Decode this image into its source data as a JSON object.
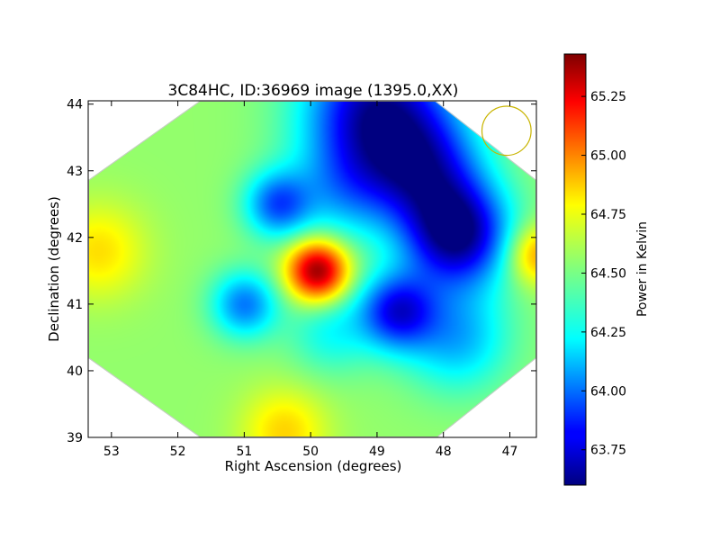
{
  "chart_data": {
    "type": "heatmap",
    "title": "3C84HC, ID:36969 image (1395.0,XX)",
    "xlabel": "Right Ascension (degrees)",
    "ylabel": "Declination (degrees)",
    "xlim": [
      53.35,
      46.6
    ],
    "ylim": [
      39.0,
      44.05
    ],
    "x_ticks": [
      "53",
      "52",
      "51",
      "50",
      "49",
      "48",
      "47"
    ],
    "y_ticks": [
      "39",
      "40",
      "41",
      "42",
      "43",
      "44"
    ],
    "colormap": "jet",
    "background": 64.55,
    "blobs": [
      {
        "ra": 49.9,
        "dec": 41.5,
        "value": 65.42,
        "sigma": 0.32
      },
      {
        "ra": 46.6,
        "dec": 41.75,
        "value": 64.95,
        "sigma": 0.32
      },
      {
        "ra": 53.2,
        "dec": 41.8,
        "value": 64.8,
        "sigma": 0.5
      },
      {
        "ra": 50.4,
        "dec": 39.1,
        "value": 64.82,
        "sigma": 0.45
      },
      {
        "ra": 49.0,
        "dec": 43.9,
        "value": 63.68,
        "sigma": 0.75
      },
      {
        "ra": 47.8,
        "dec": 42.05,
        "value": 63.62,
        "sigma": 0.55
      },
      {
        "ra": 48.7,
        "dec": 40.9,
        "value": 63.85,
        "sigma": 0.4
      },
      {
        "ra": 48.3,
        "dec": 43.0,
        "value": 63.95,
        "sigma": 0.6
      },
      {
        "ra": 50.5,
        "dec": 42.5,
        "value": 64.0,
        "sigma": 0.35
      },
      {
        "ra": 51.0,
        "dec": 41.0,
        "value": 64.05,
        "sigma": 0.35
      },
      {
        "ra": 49.5,
        "dec": 42.7,
        "value": 64.25,
        "sigma": 0.55
      },
      {
        "ra": 47.8,
        "dec": 40.5,
        "value": 64.15,
        "sigma": 0.55
      },
      {
        "ra": 49.7,
        "dec": 40.6,
        "value": 64.3,
        "sigma": 0.45
      }
    ],
    "beam": {
      "ra": 47.05,
      "dec": 43.6,
      "radius_deg": 0.37,
      "color": "#c8b400"
    },
    "colorbar": {
      "label": "Power in Kelvin",
      "min": 63.6,
      "max": 65.43,
      "ticks": [
        "63.75",
        "64.00",
        "64.25",
        "64.50",
        "64.75",
        "65.00",
        "65.25"
      ]
    }
  }
}
